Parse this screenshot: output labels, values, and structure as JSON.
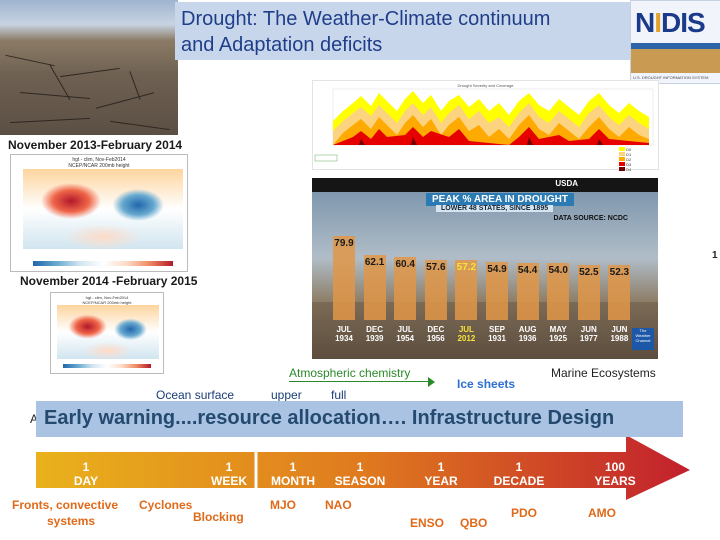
{
  "title": {
    "line1": "Drought: The Weather-Climate continuum",
    "line2": "and  Adaptation deficits"
  },
  "logo": {
    "pre": "N",
    "i": "I",
    "post": "DIS",
    "tagline": "U.S. DROUGHT INFORMATION SYSTEM"
  },
  "period1": "November 2013-February 2014",
  "period2": "November 2014 -February 2015",
  "map1_title": "hgt - clim, Nov-Feb2014\nNCEP/NCAR 200mb height",
  "map2_title": "hgt - clim, Nov-Feb2014\nNCEP/NCAR 200mb height",
  "severity_chart": {
    "title": "Drought Severity and Coverage",
    "legend": [
      "D0",
      "D1",
      "D2",
      "D3",
      "D4"
    ],
    "legend_colors": [
      "#ffff00",
      "#fcd37f",
      "#ffaa00",
      "#e60000",
      "#730000"
    ]
  },
  "peak_chart": {
    "heading": "PEAK % AREA IN DROUGHT",
    "subheading": "LOWER 48 STATES, SINCE 1895",
    "source": "DATA SOURCE: NCDC",
    "logos": "USDA"
  },
  "chart_data": {
    "type": "bar",
    "title": "PEAK % AREA IN DROUGHT",
    "subtitle": "LOWER 48 STATES, SINCE 1895",
    "categories": [
      "JUL 1934",
      "DEC 1939",
      "JUL 1954",
      "DEC 1956",
      "JUL 2012",
      "SEP 1931",
      "AUG 1936",
      "MAY 1925",
      "JUN 1977",
      "JUN 1988"
    ],
    "values": [
      79.9,
      62.1,
      60.4,
      57.6,
      57.2,
      54.9,
      54.4,
      54.0,
      52.5,
      52.3
    ],
    "highlight": "JUL 2012",
    "ylim": [
      0,
      100
    ],
    "grid": false,
    "bar_color": "#e09648",
    "highlight_color": "#f7e33c"
  },
  "side_number": "1",
  "mid_labels": {
    "atmospheric": "Atmospheric chemistry",
    "marine": "Marine Ecosystems",
    "ocean": "Ocean surface",
    "upper": "upper",
    "full": "full",
    "ice": "Ice sheets",
    "a": "A"
  },
  "banner": "Early warning....resource allocation…. Infrastructure Design",
  "scale": [
    {
      "num": "1",
      "unit": "DAY"
    },
    {
      "num": "1",
      "unit": "WEEK"
    },
    {
      "num": "1",
      "unit": "MONTH"
    },
    {
      "num": "1",
      "unit": "SEASON"
    },
    {
      "num": "1",
      "unit": "YEAR"
    },
    {
      "num": "1",
      "unit": "DECADE"
    },
    {
      "num": "100",
      "unit": "YEARS"
    }
  ],
  "phenomena": {
    "fronts": "Fronts, convective",
    "systems": "systems",
    "cyclones": "Cyclones",
    "blocking": "Blocking",
    "mjo": "MJO",
    "nao": "NAO",
    "enso": "ENSO",
    "qbo": "QBO",
    "pdo": "PDO",
    "amo": "AMO"
  },
  "colors": {
    "title_bg": "#c8d6ec",
    "title_text": "#1f3e8a",
    "banner_bg": "#aac3e3",
    "banner_text": "#244a6f",
    "arrow_start": "#e9b21c",
    "arrow_end": "#c2202d",
    "phenomena_text": "#e06a1a",
    "atmospheric_text": "#2a8a2a",
    "ice_text": "#2f6fd0"
  }
}
